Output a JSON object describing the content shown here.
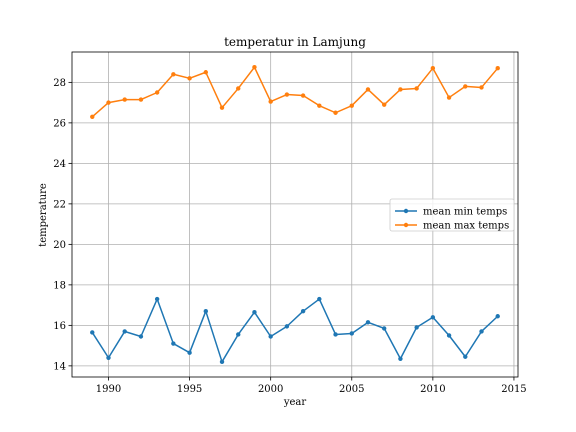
{
  "chart_data": {
    "type": "line",
    "title": "temperatur in Lamjung",
    "xlabel": "year",
    "ylabel": "temperature",
    "xlim": [
      1987.75,
      2015.25
    ],
    "ylim": [
      13.45,
      29.5
    ],
    "xticks": [
      1990,
      1995,
      2000,
      2005,
      2010,
      2015
    ],
    "yticks": [
      14,
      16,
      18,
      20,
      22,
      24,
      26,
      28
    ],
    "grid": true,
    "legend_position": "center-right",
    "x": [
      1989,
      1990,
      1991,
      1992,
      1993,
      1994,
      1995,
      1996,
      1997,
      1998,
      1999,
      2000,
      2001,
      2002,
      2003,
      2004,
      2005,
      2006,
      2007,
      2008,
      2009,
      2010,
      2011,
      2012,
      2013,
      2014
    ],
    "series": [
      {
        "name": "mean min temps",
        "color": "#1f77b4",
        "values": [
          15.65,
          14.4,
          15.7,
          15.45,
          17.3,
          15.1,
          14.65,
          16.7,
          14.2,
          15.55,
          16.65,
          15.45,
          15.95,
          16.7,
          17.3,
          15.55,
          15.6,
          16.15,
          15.85,
          14.35,
          15.9,
          16.4,
          15.5,
          14.45,
          15.7,
          16.45
        ]
      },
      {
        "name": "mean max temps",
        "color": "#ff7f0e",
        "values": [
          26.3,
          27.0,
          27.15,
          27.15,
          27.5,
          28.4,
          28.2,
          28.5,
          26.75,
          27.7,
          28.75,
          27.05,
          27.4,
          27.35,
          26.85,
          26.5,
          26.85,
          27.65,
          26.9,
          27.65,
          27.7,
          28.7,
          27.25,
          27.8,
          27.75,
          28.7
        ]
      }
    ]
  }
}
